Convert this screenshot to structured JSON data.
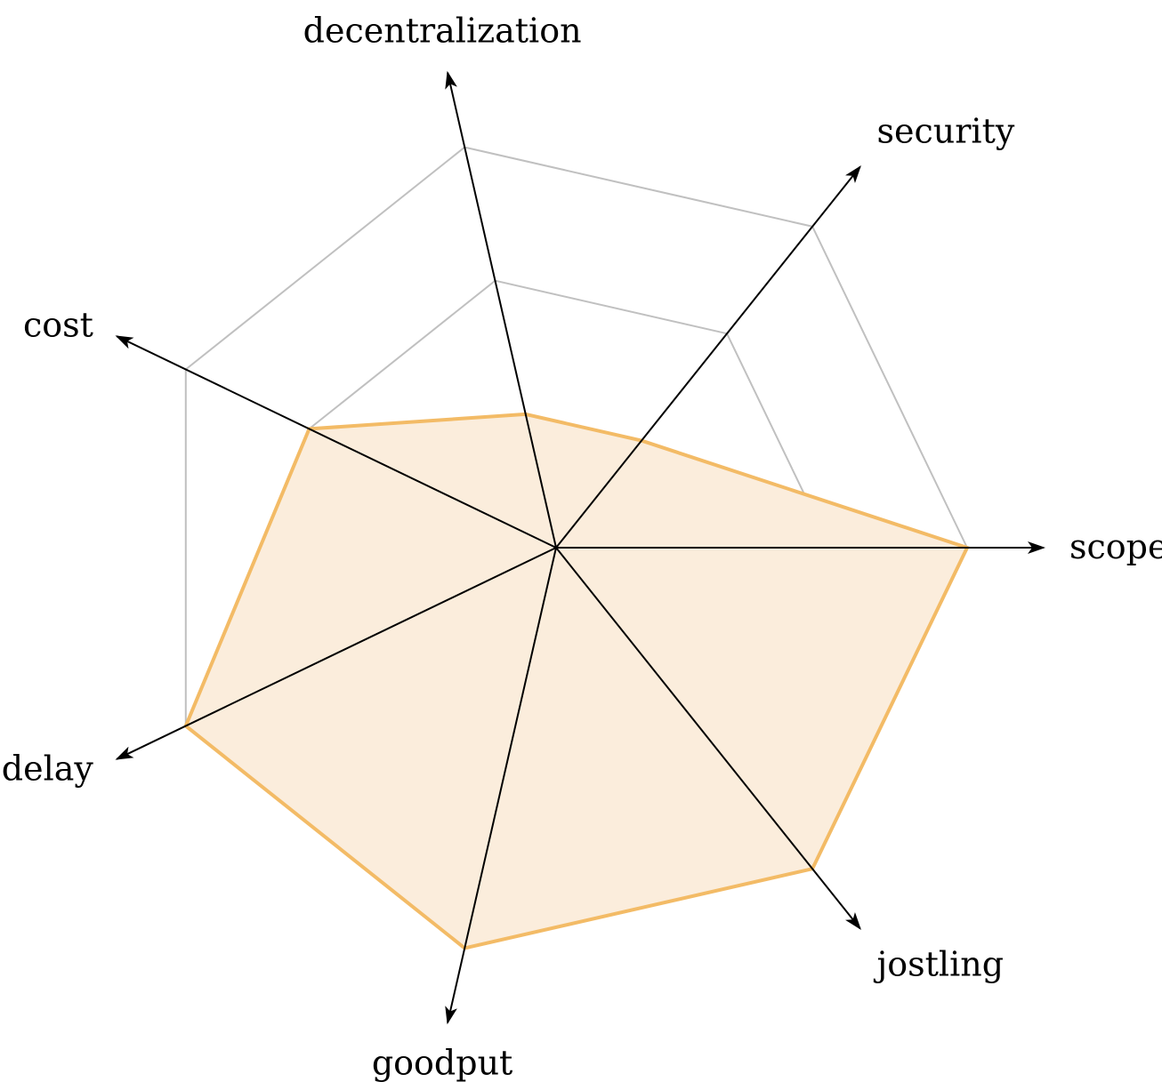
{
  "chart_data": {
    "type": "radar",
    "axes": [
      "scope",
      "security",
      "decentralization",
      "cost",
      "delay",
      "goodput",
      "jostling"
    ],
    "levels": 3,
    "rmax": 3,
    "series": [
      {
        "values": [
          3,
          1,
          1,
          2,
          3,
          3,
          3
        ]
      }
    ],
    "grid": true,
    "colors": {
      "fill": "#fbeddc",
      "stroke": "#f3bb66",
      "grid": "#c0c0c0",
      "axis": "#000000"
    }
  }
}
